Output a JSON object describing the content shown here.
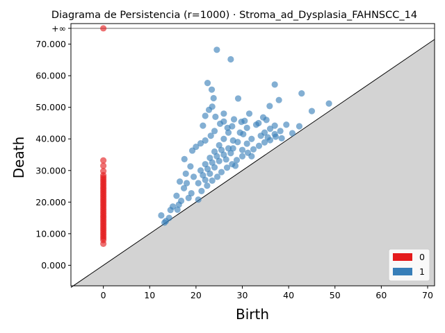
{
  "chart_data": {
    "type": "scatter",
    "title": "Diagrama de Persistencia (r=1000) · Stroma_ad_Dysplasia_FAHNSCC_14",
    "xlabel": "Birth",
    "ylabel": "Death",
    "xlim": [
      -7,
      71.5
    ],
    "ylim": [
      -6.5,
      76.5
    ],
    "x_ticks": [
      0,
      10,
      20,
      30,
      40,
      50,
      60,
      70
    ],
    "x_tick_labels": [
      "0",
      "10",
      "20",
      "30",
      "40",
      "50",
      "60",
      "70"
    ],
    "y_ticks": [
      0,
      10,
      20,
      30,
      40,
      50,
      60,
      70
    ],
    "y_tick_labels": [
      "0.000",
      "10.000",
      "20.000",
      "30.000",
      "40.000",
      "50.000",
      "60.000",
      "70.000"
    ],
    "infinity_line": {
      "value": 75,
      "label": "+∞"
    },
    "diagonal": true,
    "grid": false,
    "legend_position": "bottom-right",
    "series": [
      {
        "name": "0",
        "color": "#e41a1c",
        "points": [
          [
            0,
            75
          ],
          [
            0,
            33.2
          ],
          [
            0,
            31.5
          ],
          [
            0,
            29.8
          ],
          [
            0,
            28.5
          ],
          [
            0,
            27.8
          ],
          [
            0,
            27.2
          ],
          [
            0,
            26.6
          ],
          [
            0,
            26.0
          ],
          [
            0,
            25.4
          ],
          [
            0,
            24.8
          ],
          [
            0,
            24.2
          ],
          [
            0,
            23.6
          ],
          [
            0,
            23.0
          ],
          [
            0,
            22.4
          ],
          [
            0,
            21.8
          ],
          [
            0,
            21.2
          ],
          [
            0,
            20.6
          ],
          [
            0,
            20.0
          ],
          [
            0,
            19.4
          ],
          [
            0,
            18.8
          ],
          [
            0,
            18.2
          ],
          [
            0,
            17.6
          ],
          [
            0,
            17.0
          ],
          [
            0,
            16.4
          ],
          [
            0,
            15.8
          ],
          [
            0,
            15.2
          ],
          [
            0,
            14.6
          ],
          [
            0,
            14.0
          ],
          [
            0,
            13.4
          ],
          [
            0,
            12.8
          ],
          [
            0,
            12.2
          ],
          [
            0,
            11.6
          ],
          [
            0,
            11.0
          ],
          [
            0,
            10.4
          ],
          [
            0,
            9.8
          ],
          [
            0,
            9.2
          ],
          [
            0,
            8.6
          ],
          [
            0,
            8.0
          ],
          [
            0,
            6.8
          ]
        ]
      },
      {
        "name": "1",
        "color": "#377eb8",
        "points": [
          [
            24.5,
            68.2
          ],
          [
            27.5,
            65.2
          ],
          [
            22.5,
            57.7
          ],
          [
            37.0,
            57.2
          ],
          [
            23.4,
            55.6
          ],
          [
            42.8,
            54.4
          ],
          [
            23.8,
            52.9
          ],
          [
            29.1,
            52.8
          ],
          [
            37.9,
            52.3
          ],
          [
            48.7,
            51.2
          ],
          [
            23.5,
            50.2
          ],
          [
            35.9,
            50.4
          ],
          [
            22.8,
            49.2
          ],
          [
            45.0,
            48.8
          ],
          [
            31.5,
            48.0
          ],
          [
            26.0,
            48.0
          ],
          [
            24.2,
            47.0
          ],
          [
            34.5,
            46.8
          ],
          [
            22.0,
            47.3
          ],
          [
            29.8,
            45.4
          ],
          [
            35.2,
            46.0
          ],
          [
            39.5,
            44.5
          ],
          [
            42.3,
            44.0
          ],
          [
            21.5,
            44.2
          ],
          [
            37.0,
            44.2
          ],
          [
            33.5,
            45.0
          ],
          [
            30.5,
            45.7
          ],
          [
            28.2,
            46.2
          ],
          [
            36.0,
            43.2
          ],
          [
            40.8,
            41.8
          ],
          [
            38.5,
            40.2
          ],
          [
            34.8,
            42.0
          ],
          [
            32.0,
            40.0
          ],
          [
            30.2,
            41.5
          ],
          [
            26.8,
            43.5
          ],
          [
            25.2,
            44.8
          ],
          [
            24.0,
            42.5
          ],
          [
            23.2,
            41.0
          ],
          [
            22.0,
            39.5
          ],
          [
            21.0,
            38.6
          ],
          [
            20.0,
            37.5
          ],
          [
            19.2,
            36.3
          ],
          [
            17.5,
            33.6
          ],
          [
            18.8,
            31.3
          ],
          [
            17.8,
            29.0
          ],
          [
            19.5,
            28.0
          ],
          [
            18.0,
            26.0
          ],
          [
            17.4,
            24.4
          ],
          [
            16.5,
            26.5
          ],
          [
            15.8,
            22.0
          ],
          [
            16.8,
            20.4
          ],
          [
            16.3,
            19.2
          ],
          [
            15.0,
            18.6
          ],
          [
            14.5,
            17.5
          ],
          [
            16.0,
            17.6
          ],
          [
            12.5,
            15.8
          ],
          [
            14.2,
            15.0
          ],
          [
            13.5,
            14.0
          ],
          [
            13.2,
            13.5
          ],
          [
            18.4,
            21.3
          ],
          [
            19.0,
            22.8
          ],
          [
            20.5,
            20.8
          ],
          [
            21.2,
            23.5
          ],
          [
            22.4,
            25.2
          ],
          [
            23.5,
            26.8
          ],
          [
            24.6,
            28.0
          ],
          [
            25.5,
            29.5
          ],
          [
            26.7,
            30.9
          ],
          [
            27.8,
            32.0
          ],
          [
            28.8,
            33.3
          ],
          [
            30.0,
            34.5
          ],
          [
            31.2,
            35.6
          ],
          [
            32.4,
            36.7
          ],
          [
            33.6,
            37.8
          ],
          [
            34.8,
            38.9
          ],
          [
            36.0,
            39.6
          ],
          [
            37.2,
            40.7
          ],
          [
            21.0,
            30.0
          ],
          [
            22.0,
            32.0
          ],
          [
            23.0,
            34.0
          ],
          [
            24.0,
            36.0
          ],
          [
            25.0,
            38.0
          ],
          [
            26.0,
            40.0
          ],
          [
            27.0,
            42.0
          ],
          [
            28.0,
            37.0
          ],
          [
            29.0,
            39.0
          ],
          [
            30.0,
            36.5
          ],
          [
            31.0,
            38.5
          ],
          [
            32.0,
            34.5
          ],
          [
            20.5,
            26.0
          ],
          [
            21.5,
            28.5
          ],
          [
            22.5,
            30.5
          ],
          [
            23.5,
            32.5
          ],
          [
            24.5,
            34.5
          ],
          [
            25.5,
            36.5
          ],
          [
            26.5,
            33.5
          ],
          [
            27.5,
            35.5
          ],
          [
            28.5,
            31.5
          ],
          [
            22.0,
            27.0
          ],
          [
            23.0,
            29.0
          ],
          [
            24.0,
            31.0
          ],
          [
            25.0,
            33.0
          ],
          [
            26.0,
            35.0
          ],
          [
            27.0,
            37.0
          ],
          [
            28.0,
            39.5
          ],
          [
            29.5,
            42.0
          ],
          [
            31.0,
            43.5
          ],
          [
            33.0,
            44.5
          ],
          [
            34.0,
            41.0
          ],
          [
            35.5,
            40.5
          ],
          [
            37.0,
            41.5
          ],
          [
            38.2,
            42.5
          ],
          [
            26.0,
            45.5
          ],
          [
            27.8,
            44.0
          ]
        ]
      }
    ]
  }
}
